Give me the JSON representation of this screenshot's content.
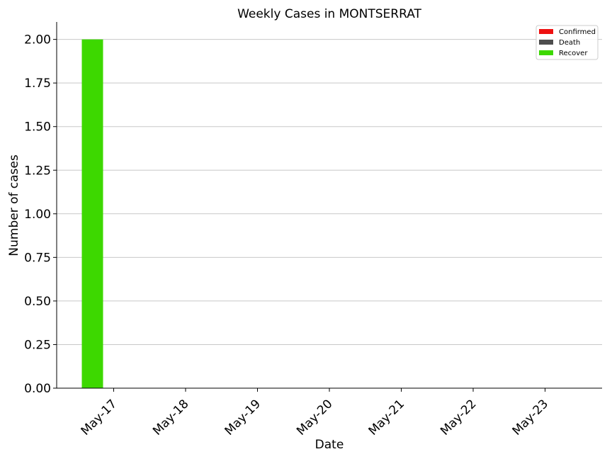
{
  "chart_data": {
    "type": "bar",
    "title": "Weekly Cases in MONTSERRAT",
    "xlabel": "Date",
    "ylabel": "Number of cases",
    "categories": [
      "May-17",
      "May-18",
      "May-19",
      "May-20",
      "May-21",
      "May-22",
      "May-23"
    ],
    "series": [
      {
        "name": "Confirmed",
        "color": "#ee1111",
        "values": [
          0,
          0,
          0,
          0,
          0,
          0,
          0
        ]
      },
      {
        "name": "Death",
        "color": "#4d4d4d",
        "values": [
          0,
          0,
          0,
          0,
          0,
          0,
          0
        ]
      },
      {
        "name": "Recover",
        "color": "#3dd800",
        "values": [
          2,
          0,
          0,
          0,
          0,
          0,
          0
        ]
      }
    ],
    "ylim": [
      0,
      2.1
    ],
    "yticks": [
      "0.00",
      "0.25",
      "0.50",
      "0.75",
      "1.00",
      "1.25",
      "1.50",
      "1.75",
      "2.00"
    ],
    "grid": "horizontal",
    "legend_position": "top-right"
  }
}
